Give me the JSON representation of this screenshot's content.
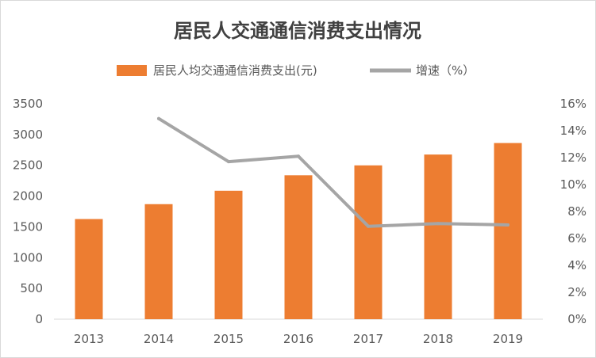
{
  "chart_data": {
    "type": "bar",
    "title": "居民人交通通信消费支出情况",
    "categories": [
      "2013",
      "2014",
      "2015",
      "2016",
      "2017",
      "2018",
      "2019"
    ],
    "series": [
      {
        "name": "居民人均交通通信消费支出(元)",
        "type": "bar",
        "axis": "left",
        "color": "#ED7D31",
        "values": [
          1627,
          1869,
          2087,
          2338,
          2499,
          2675,
          2862
        ]
      },
      {
        "name": "增速（%）",
        "type": "line",
        "axis": "right",
        "color": "#A5A5A5",
        "values": [
          null,
          14.9,
          11.7,
          12.1,
          6.9,
          7.1,
          7.0
        ]
      }
    ],
    "y_left": {
      "min": 0,
      "max": 3500,
      "step": 500,
      "ticks": [
        "0",
        "500",
        "1000",
        "1500",
        "2000",
        "2500",
        "3000",
        "3500"
      ]
    },
    "y_right": {
      "min": 0,
      "max": 16,
      "step": 2,
      "ticks": [
        "0%",
        "2%",
        "4%",
        "6%",
        "8%",
        "10%",
        "12%",
        "14%",
        "16%"
      ]
    },
    "grid": false,
    "legend": "top"
  }
}
